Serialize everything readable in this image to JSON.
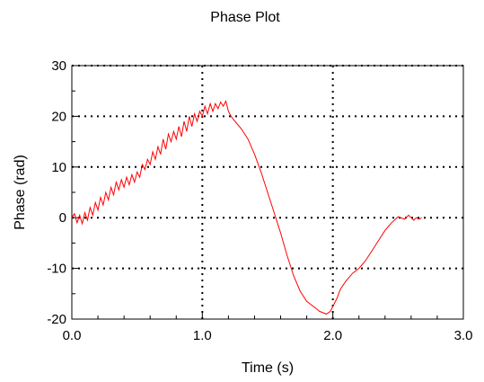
{
  "chart_data": {
    "type": "line",
    "title": "Phase Plot",
    "xlabel": "Time (s)",
    "ylabel": "Phase (rad)",
    "xlim": [
      0.0,
      3.0
    ],
    "ylim": [
      -20,
      30
    ],
    "xticks": [
      0.0,
      1.0,
      2.0,
      3.0
    ],
    "xtick_labels": [
      "0.0",
      "1.0",
      "2.0",
      "3.0"
    ],
    "yticks": [
      -20,
      -10,
      0,
      10,
      20,
      30
    ],
    "ytick_labels": [
      "-20",
      "-10",
      "0",
      "10",
      "20",
      "30"
    ],
    "grid": true,
    "line_color": "#ff0000",
    "series": [
      {
        "x": [
          0.0,
          0.02,
          0.04,
          0.06,
          0.08,
          0.1,
          0.12,
          0.14,
          0.16,
          0.18,
          0.2,
          0.22,
          0.24,
          0.26,
          0.28,
          0.3,
          0.32,
          0.34,
          0.36,
          0.38,
          0.4,
          0.42,
          0.44,
          0.46,
          0.48,
          0.5,
          0.52,
          0.54,
          0.56,
          0.58,
          0.6,
          0.62,
          0.64,
          0.66,
          0.68,
          0.7,
          0.72,
          0.74,
          0.76,
          0.78,
          0.8,
          0.82,
          0.84,
          0.86,
          0.88,
          0.9,
          0.92,
          0.94,
          0.96,
          0.98,
          1.0,
          1.02,
          1.04,
          1.06,
          1.08,
          1.1,
          1.12,
          1.14,
          1.16,
          1.18,
          1.2,
          1.22,
          1.25,
          1.3,
          1.35,
          1.4,
          1.45,
          1.5,
          1.55,
          1.6,
          1.65,
          1.7,
          1.75,
          1.8,
          1.85,
          1.9,
          1.95,
          1.98,
          2.0,
          2.03,
          2.06,
          2.1,
          2.15,
          2.2,
          2.25,
          2.3,
          2.35,
          2.4,
          2.45,
          2.5,
          2.55,
          2.58,
          2.6,
          2.62,
          2.64,
          2.66,
          2.68
        ],
        "y": [
          0.0,
          0.8,
          -1.0,
          0.5,
          -1.2,
          1.0,
          -0.5,
          2.0,
          0.5,
          3.0,
          1.5,
          4.0,
          2.5,
          5.0,
          3.5,
          6.0,
          4.5,
          7.0,
          5.5,
          7.5,
          6.0,
          8.0,
          6.5,
          8.5,
          7.0,
          9.0,
          8.0,
          10.5,
          9.5,
          11.5,
          10.5,
          13.0,
          11.5,
          14.0,
          12.5,
          15.5,
          13.5,
          16.5,
          15.0,
          17.0,
          15.5,
          18.0,
          16.0,
          19.0,
          17.0,
          20.0,
          18.0,
          20.5,
          19.0,
          21.0,
          20.0,
          22.0,
          20.5,
          22.5,
          21.0,
          22.5,
          21.5,
          22.8,
          22.0,
          23.0,
          21.0,
          20.0,
          19.0,
          17.5,
          15.5,
          12.5,
          9.0,
          5.0,
          1.0,
          -3.0,
          -7.5,
          -11.5,
          -14.5,
          -16.5,
          -17.5,
          -18.5,
          -19.0,
          -18.5,
          -17.5,
          -16.0,
          -14.0,
          -12.5,
          -11.0,
          -10.0,
          -8.5,
          -6.5,
          -4.5,
          -2.5,
          -1.0,
          0.2,
          -0.3,
          0.5,
          0.0,
          -0.5,
          0.0,
          -0.3,
          0.0
        ]
      }
    ]
  }
}
